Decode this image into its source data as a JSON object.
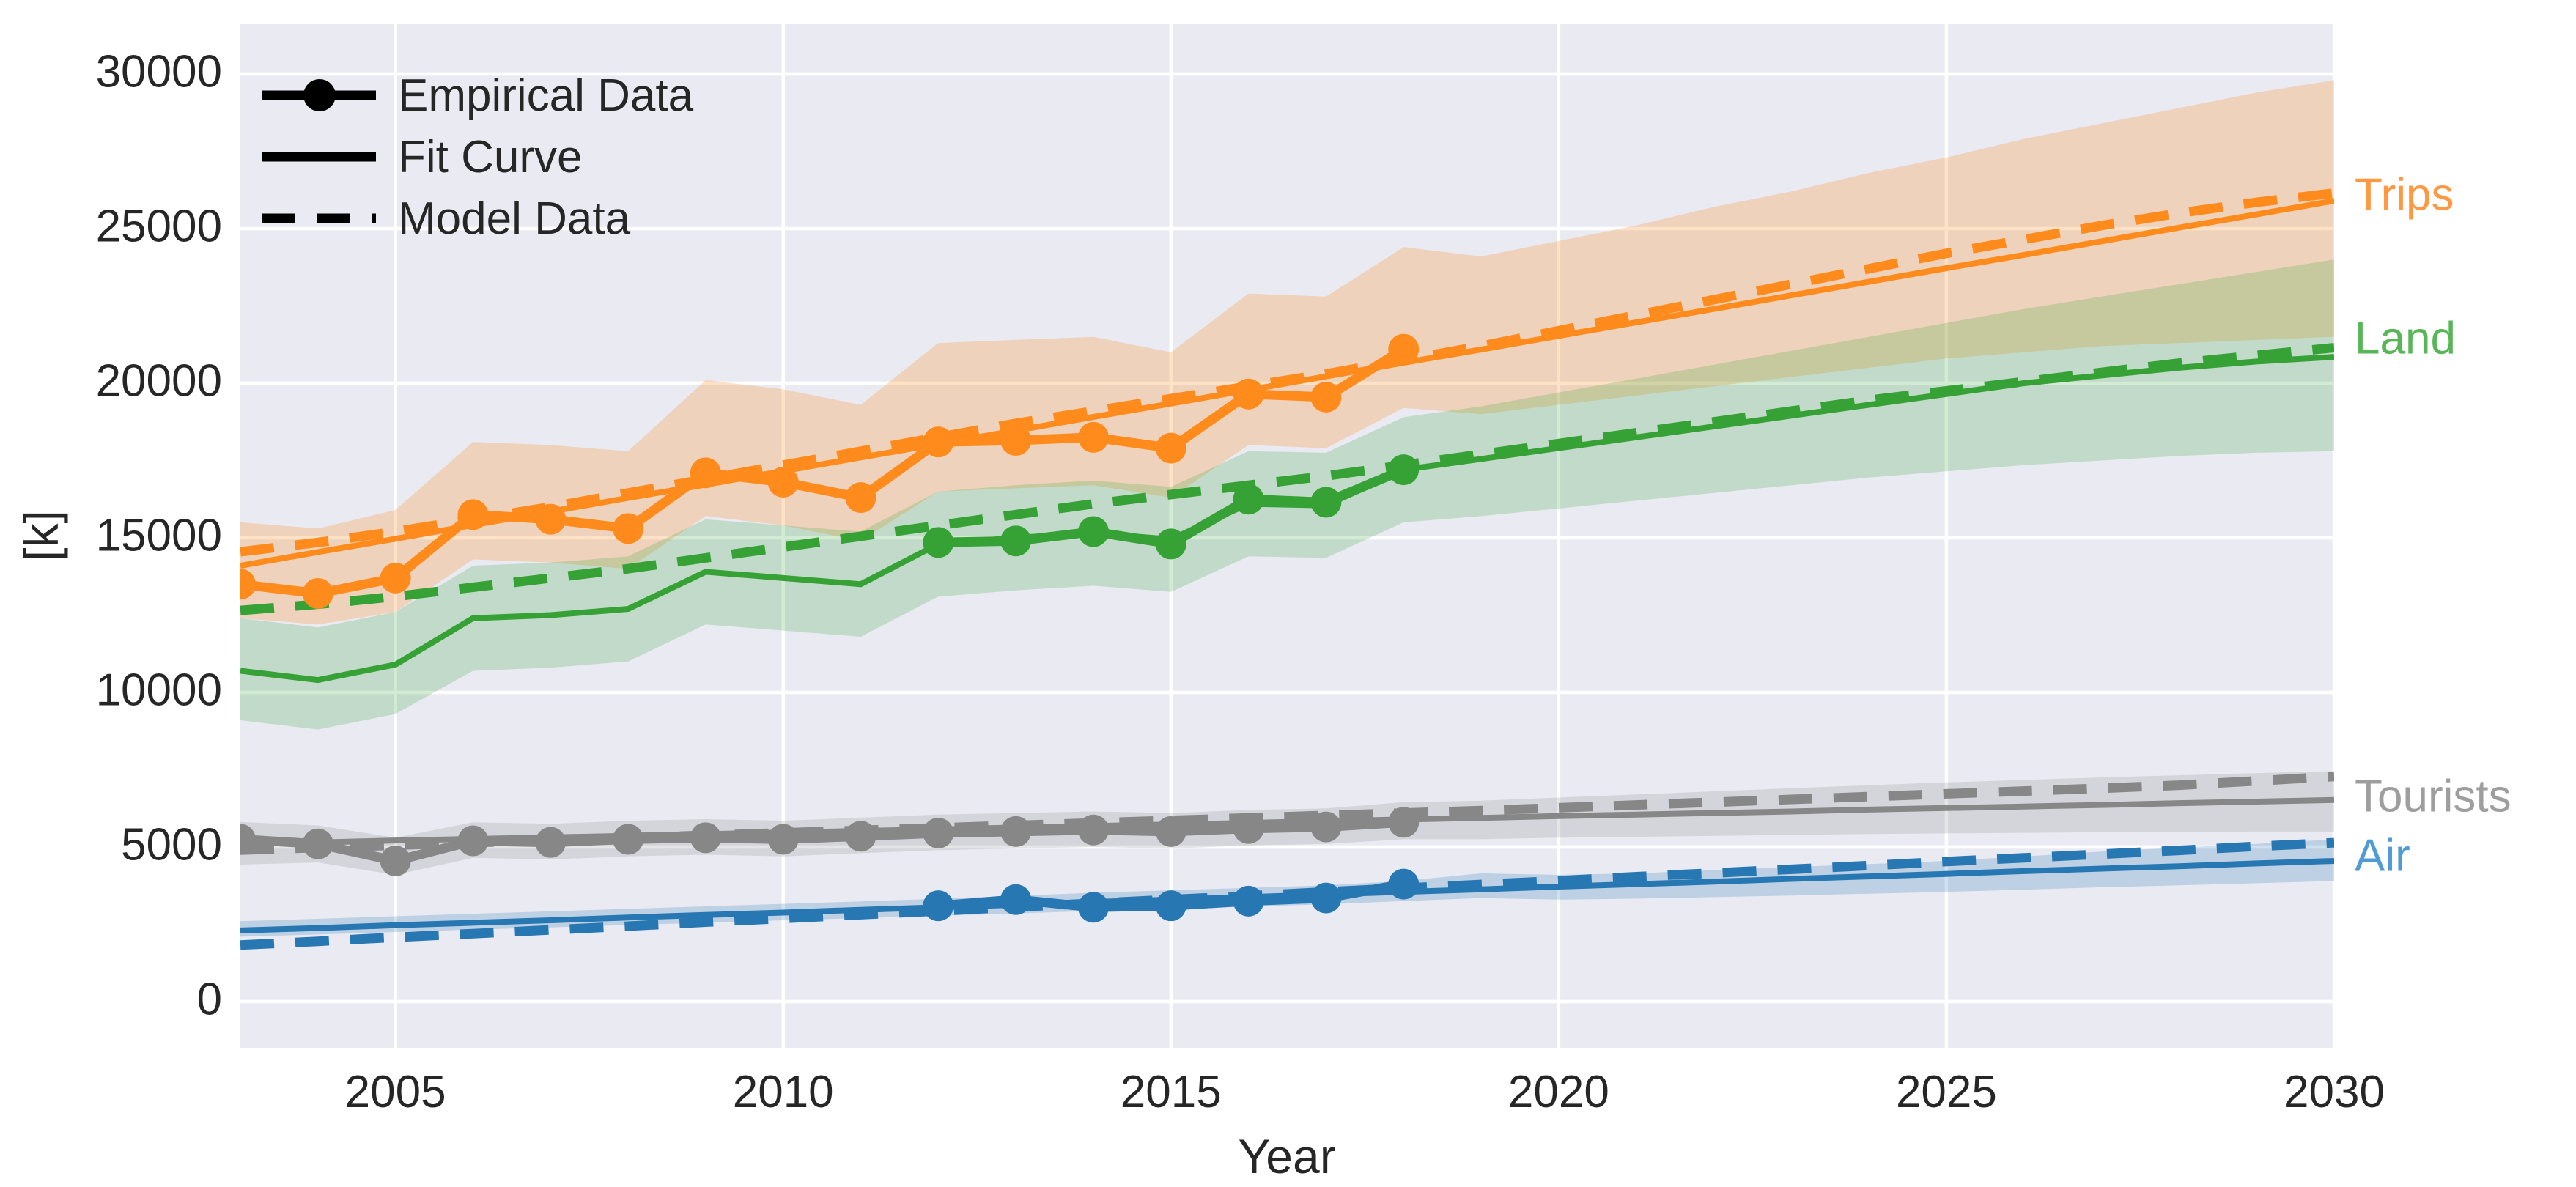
{
  "figure": {
    "background": "#ffffff",
    "plot_background": "#eaeaf2",
    "grid_color": "#ffffff",
    "text_color": "#262626"
  },
  "legend": {
    "items": [
      {
        "label": "Empirical Data",
        "style": "marker-line"
      },
      {
        "label": "Fit Curve",
        "style": "solid"
      },
      {
        "label": "Model Data",
        "style": "dashed"
      }
    ],
    "color": "#000000"
  },
  "chart_data": {
    "type": "line",
    "title": "",
    "xlabel": "Year",
    "ylabel": "[k]",
    "xlim": [
      2003,
      2030
    ],
    "ylim": [
      -1493,
      31611
    ],
    "grid": true,
    "legend_position": "upper-left",
    "x_ticks": [
      2005,
      2010,
      2015,
      2020,
      2025,
      2030
    ],
    "x_tick_labels": [
      "2005",
      "2010",
      "2015",
      "2020",
      "2025",
      "2030"
    ],
    "y_ticks": [
      0,
      5000,
      10000,
      15000,
      20000,
      25000,
      30000
    ],
    "y_tick_labels": [
      "0",
      "5000",
      "10000",
      "15000",
      "20000",
      "25000",
      "30000"
    ],
    "model_years": [
      2003,
      2004,
      2005,
      2006,
      2007,
      2008,
      2009,
      2010,
      2011,
      2012,
      2013,
      2014,
      2015,
      2016,
      2017,
      2018,
      2019,
      2020,
      2021,
      2022,
      2023,
      2024,
      2025,
      2026,
      2027,
      2028,
      2029,
      2030
    ],
    "series": [
      {
        "name": "trips",
        "label": "Trips",
        "color": "#fe8b1c",
        "label_color": "#ff9840",
        "band_opacity": 0.25,
        "label_value": 26100,
        "empirical_years": [
          2003,
          2004,
          2005,
          2006,
          2007,
          2008,
          2009,
          2010,
          2011,
          2012,
          2013,
          2014,
          2015,
          2016,
          2017,
          2018
        ],
        "empirical": [
          13500,
          13200,
          13700,
          15750,
          15600,
          15300,
          17100,
          16800,
          16300,
          18100,
          18150,
          18250,
          17900,
          19650,
          19550,
          21100
        ],
        "fit": [
          14100,
          14540,
          14970,
          15410,
          15850,
          16290,
          16720,
          17160,
          17600,
          18030,
          18470,
          18910,
          19340,
          19780,
          20220,
          20660,
          21090,
          21530,
          21970,
          22400,
          22840,
          23280,
          23720,
          24150,
          24590,
          25030,
          25460,
          25900
        ],
        "model": [
          14550,
          14850,
          15200,
          15600,
          16000,
          16450,
          16900,
          17350,
          17800,
          18250,
          18700,
          19100,
          19500,
          19900,
          20300,
          20750,
          21200,
          21700,
          22200,
          22700,
          23200,
          23700,
          24200,
          24650,
          25100,
          25500,
          25850,
          26150
        ],
        "band_top": [
          15500,
          15300,
          15900,
          18100,
          18000,
          17800,
          20100,
          19800,
          19300,
          21300,
          21400,
          21500,
          21000,
          22900,
          22800,
          24400,
          24100,
          24600,
          25100,
          25700,
          26200,
          26800,
          27300,
          27900,
          28400,
          28900,
          29400,
          29800
        ],
        "band_bottom": [
          12400,
          12200,
          12600,
          14300,
          14200,
          14000,
          15700,
          15400,
          14900,
          16500,
          16600,
          16700,
          16300,
          18000,
          17900,
          19200,
          19000,
          19300,
          19600,
          19900,
          20200,
          20500,
          20800,
          21000,
          21200,
          21300,
          21400,
          21500
        ]
      },
      {
        "name": "land",
        "label": "Land",
        "color": "#36a236",
        "label_color": "#57b657",
        "band_opacity": 0.22,
        "label_value": 21450,
        "empirical_years": [
          2012,
          2013,
          2014,
          2015,
          2016,
          2017,
          2018
        ],
        "empirical": [
          14850,
          14900,
          15200,
          14800,
          16250,
          16150,
          17200
        ],
        "fit": [
          10700,
          10400,
          10900,
          12400,
          12500,
          12700,
          13900,
          13700,
          13500,
          14800,
          15000,
          15150,
          14950,
          16100,
          16050,
          17200,
          17550,
          17900,
          18250,
          18600,
          18950,
          19300,
          19650,
          20000,
          20250,
          20500,
          20700,
          20850
        ],
        "model": [
          12650,
          12850,
          13100,
          13400,
          13700,
          14000,
          14350,
          14700,
          15050,
          15400,
          15750,
          16100,
          16400,
          16700,
          17000,
          17350,
          17700,
          18050,
          18400,
          18750,
          19100,
          19450,
          19750,
          20050,
          20350,
          20650,
          20900,
          21150
        ],
        "band_top": [
          12400,
          12100,
          12600,
          14100,
          14200,
          14400,
          15600,
          15400,
          15200,
          16500,
          16700,
          16850,
          16650,
          17800,
          17750,
          18900,
          19250,
          19700,
          20150,
          20600,
          21050,
          21500,
          21950,
          22400,
          22800,
          23200,
          23600,
          24000
        ],
        "band_bottom": [
          9100,
          8800,
          9300,
          10700,
          10800,
          11000,
          12200,
          12000,
          11800,
          13100,
          13300,
          13450,
          13250,
          14400,
          14350,
          15500,
          15700,
          15950,
          16200,
          16450,
          16700,
          16950,
          17150,
          17350,
          17500,
          17650,
          17750,
          17800
        ]
      },
      {
        "name": "tourists",
        "label": "Tourists",
        "color": "#878787",
        "label_color": "#9e9e9e",
        "band_opacity": 0.22,
        "label_value": 6640,
        "empirical_years": [
          2003,
          2004,
          2005,
          2006,
          2007,
          2008,
          2009,
          2010,
          2011,
          2012,
          2013,
          2014,
          2015,
          2016,
          2017,
          2018
        ],
        "empirical": [
          5250,
          5100,
          4550,
          5200,
          5150,
          5250,
          5300,
          5250,
          5350,
          5450,
          5500,
          5550,
          5500,
          5600,
          5650,
          5800
        ],
        "fit": [
          5100,
          5150,
          5210,
          5260,
          5310,
          5360,
          5420,
          5470,
          5520,
          5570,
          5630,
          5680,
          5730,
          5780,
          5840,
          5890,
          5940,
          6000,
          6050,
          6100,
          6150,
          6210,
          6260,
          6310,
          6360,
          6420,
          6470,
          6520
        ],
        "model": [
          4900,
          4980,
          5060,
          5140,
          5220,
          5300,
          5380,
          5460,
          5540,
          5620,
          5700,
          5780,
          5860,
          5940,
          6020,
          6100,
          6180,
          6270,
          6360,
          6450,
          6540,
          6630,
          6720,
          6810,
          6900,
          7000,
          7140,
          7280
        ],
        "band_top": [
          5810,
          5700,
          5300,
          5800,
          5750,
          5850,
          5900,
          5850,
          5950,
          6050,
          6100,
          6150,
          6100,
          6200,
          6250,
          6450,
          6500,
          6600,
          6700,
          6800,
          6900,
          7000,
          7090,
          7170,
          7250,
          7320,
          7390,
          7450
        ],
        "band_bottom": [
          4430,
          4500,
          4100,
          4650,
          4600,
          4700,
          4750,
          4700,
          4800,
          4900,
          4950,
          5000,
          4950,
          5050,
          5100,
          5250,
          5250,
          5300,
          5330,
          5360,
          5390,
          5420,
          5440,
          5460,
          5480,
          5490,
          5500,
          5500
        ]
      },
      {
        "name": "air",
        "label": "Air",
        "color": "#2677b2",
        "label_color": "#4f9bd5",
        "band_opacity": 0.22,
        "label_value": 4720,
        "empirical_years": [
          2012,
          2013,
          2014,
          2015,
          2016,
          2017,
          2018
        ],
        "empirical": [
          3100,
          3300,
          3050,
          3100,
          3250,
          3350,
          3800
        ],
        "fit": [
          2300,
          2380,
          2470,
          2550,
          2630,
          2720,
          2800,
          2880,
          2970,
          3050,
          3130,
          3220,
          3300,
          3380,
          3470,
          3550,
          3630,
          3720,
          3800,
          3880,
          3970,
          4050,
          4130,
          4220,
          4300,
          4380,
          4470,
          4550
        ],
        "model": [
          1830,
          1950,
          2080,
          2200,
          2320,
          2440,
          2570,
          2690,
          2810,
          2930,
          3060,
          3180,
          3300,
          3420,
          3550,
          3670,
          3790,
          3910,
          4040,
          4160,
          4280,
          4400,
          4530,
          4650,
          4770,
          4890,
          5020,
          5140
        ],
        "band_top": [
          2600,
          2680,
          2760,
          2840,
          2920,
          3000,
          3080,
          3160,
          3240,
          3330,
          3420,
          3520,
          3600,
          3680,
          3760,
          3900,
          4150,
          4100,
          4150,
          4250,
          4350,
          4450,
          4550,
          4700,
          4850,
          4980,
          5100,
          5250
        ],
        "band_bottom": [
          2100,
          2170,
          2250,
          2330,
          2400,
          2480,
          2550,
          2630,
          2700,
          2780,
          2850,
          2930,
          3000,
          3070,
          3150,
          3250,
          3350,
          3300,
          3330,
          3380,
          3430,
          3490,
          3550,
          3620,
          3700,
          3760,
          3830,
          3900
        ]
      }
    ]
  }
}
